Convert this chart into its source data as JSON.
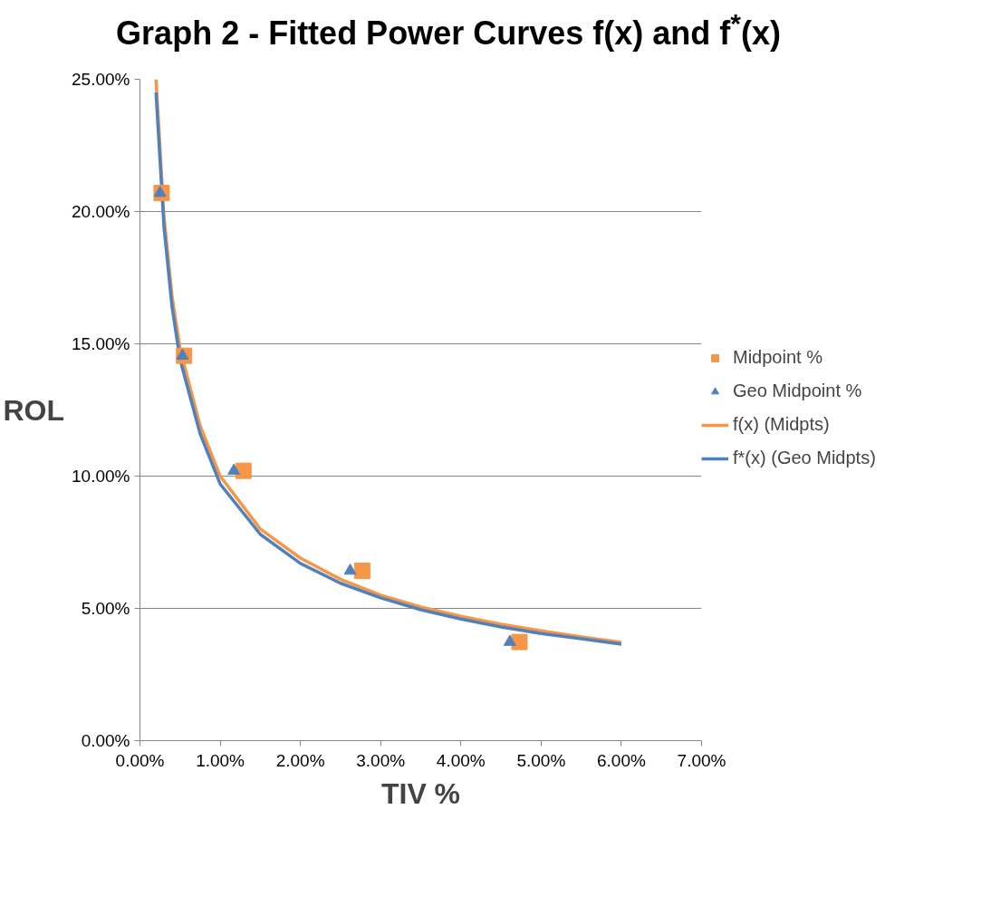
{
  "chart_data": {
    "type": "scatter",
    "title": "Graph 2 - Fitted Power Curves f(x) and f$^{*}$(x)",
    "xlabel": "TIV %",
    "ylabel": "ROL",
    "xlim": [
      0,
      7
    ],
    "ylim": [
      0,
      25
    ],
    "xticks": [
      {
        "value": 0,
        "label": "0.00%"
      },
      {
        "value": 1,
        "label": "1.00%"
      },
      {
        "value": 2,
        "label": "2.00%"
      },
      {
        "value": 3,
        "label": "3.00%"
      },
      {
        "value": 4,
        "label": "4.00%"
      },
      {
        "value": 5,
        "label": "5.00%"
      },
      {
        "value": 6,
        "label": "6.00%"
      },
      {
        "value": 7,
        "label": "7.00%"
      }
    ],
    "yticks": [
      {
        "value": 0,
        "label": "0.00%"
      },
      {
        "value": 5,
        "label": "5.00%"
      },
      {
        "value": 10,
        "label": "10.00%"
      },
      {
        "value": 15,
        "label": "15.00%"
      },
      {
        "value": 20,
        "label": "20.00%"
      },
      {
        "value": 25,
        "label": "25.00%"
      }
    ],
    "grid": "y",
    "legend": "right",
    "series": [
      {
        "name": "Midpoint %",
        "marker": "square",
        "color": "#f79646",
        "x": [
          0.27,
          0.55,
          1.29,
          2.77,
          4.73
        ],
        "values": [
          20.7,
          14.55,
          10.2,
          6.42,
          3.73
        ]
      },
      {
        "name": "Geo Midpoint %",
        "marker": "triangle",
        "color": "#4f81bd",
        "x": [
          0.25,
          0.53,
          1.17,
          2.62,
          4.61
        ],
        "values": [
          20.7,
          14.55,
          10.2,
          6.42,
          3.73
        ]
      },
      {
        "name": "f(x) (Midpts)",
        "type": "line",
        "marker": "none",
        "line_style": "solid",
        "color": "#f79646",
        "x": [
          0.2,
          0.3,
          0.4,
          0.5,
          0.75,
          1,
          1.5,
          2,
          2.5,
          3,
          3.5,
          4,
          4.5,
          5,
          5.5,
          6
        ],
        "values": [
          25,
          19.8,
          16.8,
          14.8,
          11.9,
          10.0,
          8.0,
          6.9,
          6.1,
          5.5,
          5.05,
          4.7,
          4.4,
          4.15,
          3.92,
          3.72
        ]
      },
      {
        "name": "f*(x) (Geo Midpts)",
        "type": "line",
        "marker": "none",
        "line_style": "solid",
        "color": "#4f81bd",
        "x": [
          0.2,
          0.3,
          0.4,
          0.5,
          0.75,
          1,
          1.5,
          2,
          2.5,
          3,
          3.5,
          4,
          4.5,
          5,
          5.5,
          6
        ],
        "values": [
          24.5,
          19.4,
          16.4,
          14.4,
          11.6,
          9.7,
          7.8,
          6.7,
          5.95,
          5.4,
          4.95,
          4.6,
          4.3,
          4.05,
          3.85,
          3.65
        ]
      }
    ]
  }
}
